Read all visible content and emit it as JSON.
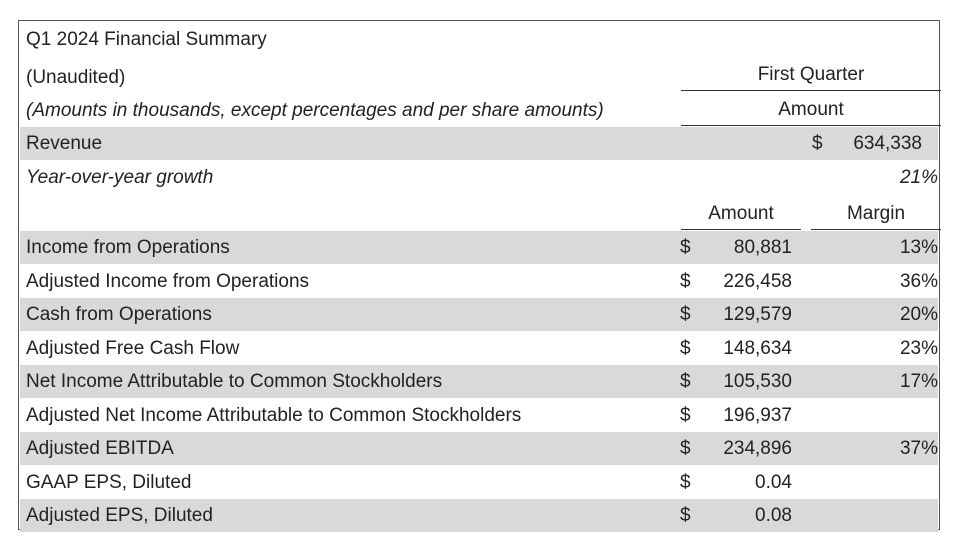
{
  "title": "Q1 2024 Financial Summary",
  "subtitle": "(Unaudited)",
  "note": "(Amounts in thousands, except percentages and per share amounts)",
  "headers": {
    "period": "First Quarter",
    "amount_top": "Amount",
    "amount": "Amount",
    "margin": "Margin"
  },
  "revenue": {
    "label": "Revenue",
    "currency": "$",
    "value": "634,338"
  },
  "growth": {
    "label": "Year-over-year growth",
    "value": "21%"
  },
  "rows": [
    {
      "label": "Income from Operations",
      "currency": "$",
      "amount": "80,881",
      "margin": "13%"
    },
    {
      "label": "Adjusted Income from Operations",
      "currency": "$",
      "amount": "226,458",
      "margin": "36%"
    },
    {
      "label": "Cash from Operations",
      "currency": "$",
      "amount": "129,579",
      "margin": "20%"
    },
    {
      "label": "Adjusted Free Cash Flow",
      "currency": "$",
      "amount": "148,634",
      "margin": "23%"
    },
    {
      "label": "Net Income Attributable to Common Stockholders",
      "currency": "$",
      "amount": "105,530",
      "margin": "17%"
    },
    {
      "label": "Adjusted Net Income Attributable to Common Stockholders",
      "currency": "$",
      "amount": "196,937",
      "margin": ""
    },
    {
      "label": "Adjusted EBITDA",
      "currency": "$",
      "amount": "234,896",
      "margin": "37%"
    },
    {
      "label": "GAAP EPS, Diluted",
      "currency": "$",
      "amount": "0.04",
      "margin": ""
    },
    {
      "label": "Adjusted EPS, Diluted",
      "currency": "$",
      "amount": "0.08",
      "margin": ""
    }
  ],
  "colors": {
    "shade": "#d9d9d9",
    "border": "#555555",
    "text": "#222222"
  }
}
